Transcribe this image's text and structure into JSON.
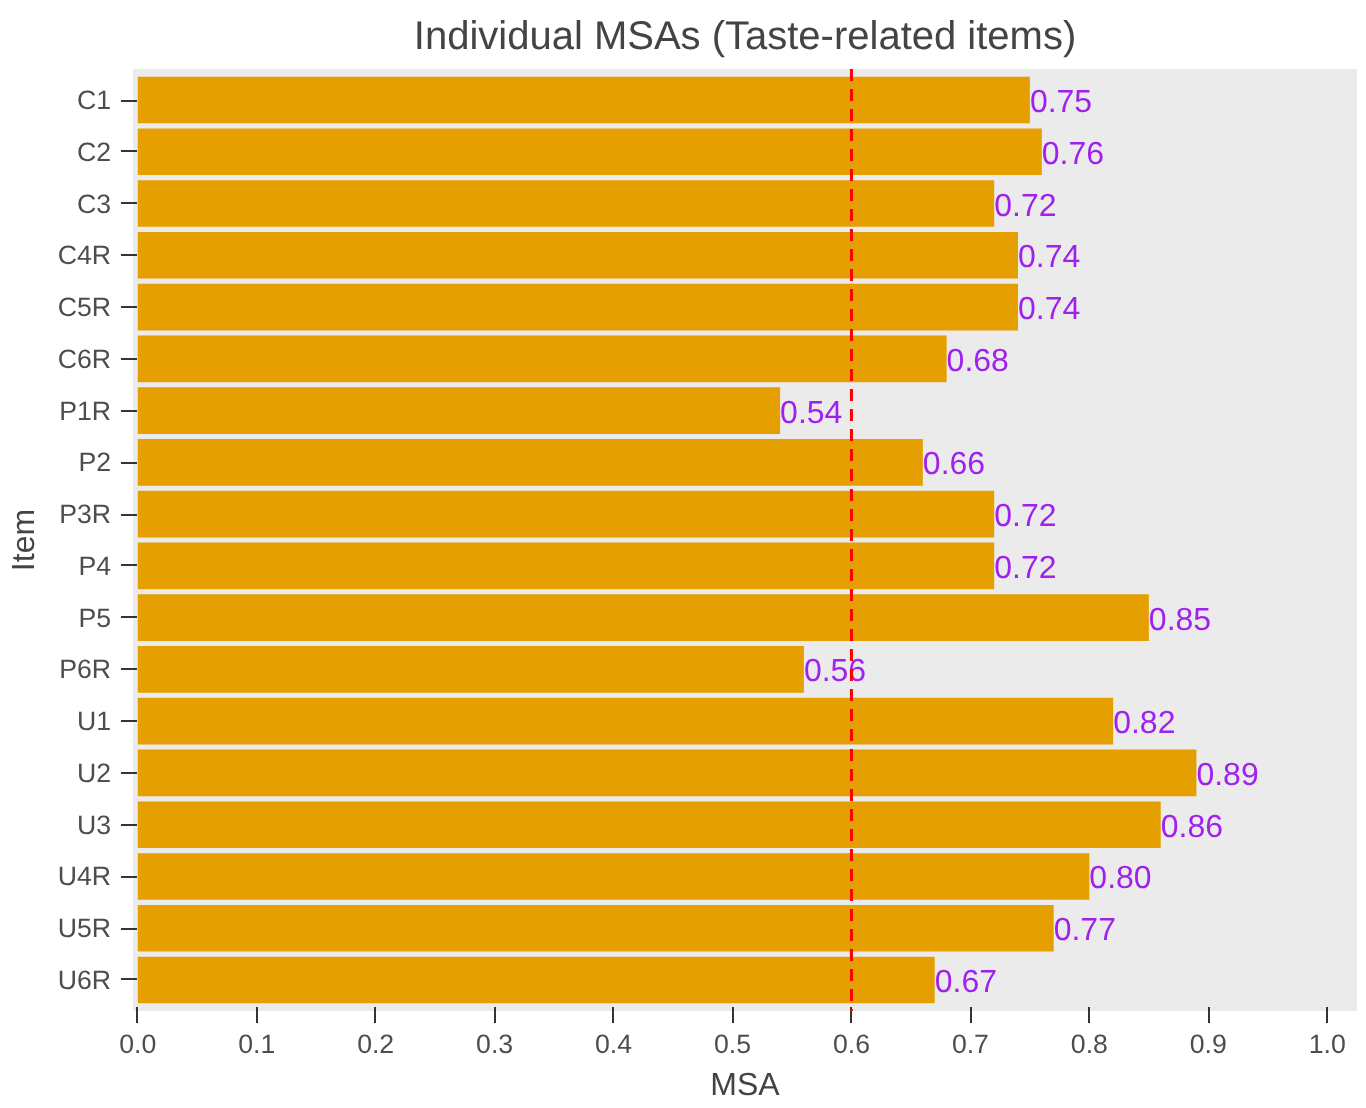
{
  "chart_data": {
    "type": "bar",
    "orientation": "horizontal",
    "title": "Individual MSAs (Taste-related items)",
    "xlabel": "MSA",
    "ylabel": "Item",
    "categories": [
      "C1",
      "C2",
      "C3",
      "C4R",
      "C5R",
      "C6R",
      "P1R",
      "P2",
      "P3R",
      "P4",
      "P5",
      "P6R",
      "U1",
      "U2",
      "U3",
      "U4R",
      "U5R",
      "U6R"
    ],
    "values": [
      0.75,
      0.76,
      0.72,
      0.74,
      0.74,
      0.68,
      0.54,
      0.66,
      0.72,
      0.72,
      0.85,
      0.56,
      0.82,
      0.89,
      0.86,
      0.8,
      0.77,
      0.67
    ],
    "value_labels": [
      "0.75",
      "0.76",
      "0.72",
      "0.74",
      "0.74",
      "0.68",
      "0.54",
      "0.66",
      "0.72",
      "0.72",
      "0.85",
      "0.56",
      "0.82",
      "0.89",
      "0.86",
      "0.80",
      "0.77",
      "0.67"
    ],
    "color": "#e69f00",
    "xlim": [
      -0.004,
      1.025
    ],
    "xticks": [
      {
        "value": 0,
        "label": "0.0"
      },
      0.1,
      0.2,
      0.3,
      0.4,
      0.5,
      0.6,
      0.7,
      0.8,
      0.9,
      {
        "value": 1,
        "label": "1.0"
      }
    ],
    "ref_lines": [
      {
        "axis": "x",
        "value": 0.6,
        "color": "#ff0000",
        "line_style": "dashed"
      }
    ],
    "grid": false
  }
}
